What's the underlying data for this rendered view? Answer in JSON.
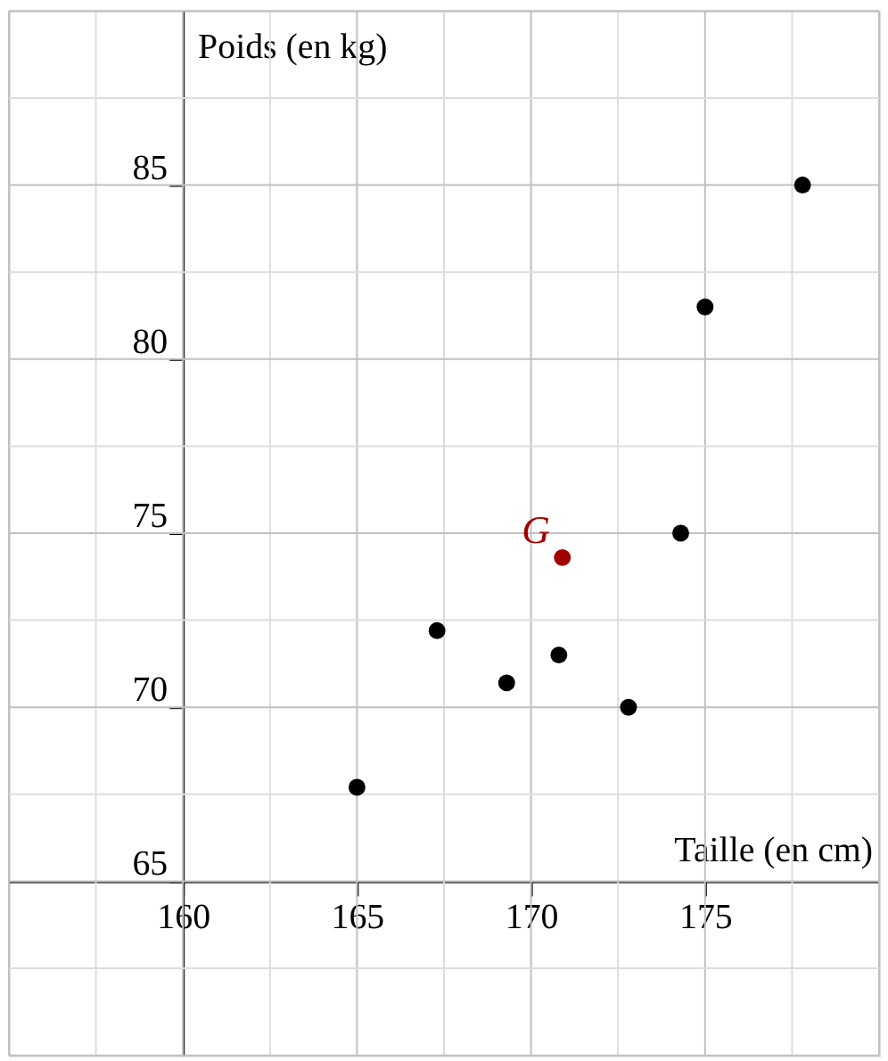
{
  "chart_data": {
    "type": "scatter",
    "xlabel": "Taille (en cm)",
    "ylabel": "Poids (en kg)",
    "xlim": [
      155,
      180
    ],
    "ylim": [
      60,
      90
    ],
    "xticks": [
      160,
      165,
      170,
      175
    ],
    "yticks": [
      65,
      70,
      75,
      80,
      85
    ],
    "grid": true,
    "legend": false,
    "marker": "circle",
    "series": [
      {
        "color": "#000000",
        "x": [
          165,
          167.3,
          169.3,
          170.8,
          172.8,
          174.3,
          175,
          177.8
        ],
        "values": [
          67.7,
          72.2,
          70.7,
          71.5,
          70,
          75,
          81.5,
          85
        ]
      },
      {
        "name": "G",
        "color": "#a00000",
        "x": [
          170.9
        ],
        "values": [
          74.3
        ]
      }
    ]
  }
}
